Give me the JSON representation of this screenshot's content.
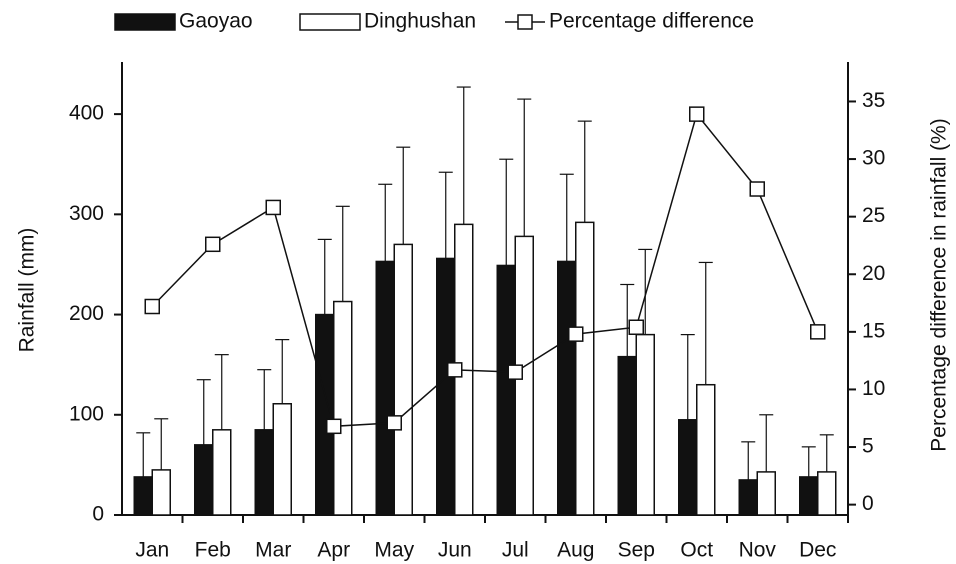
{
  "chart_data": {
    "type": "bar",
    "categories": [
      "Jan",
      "Feb",
      "Mar",
      "Apr",
      "May",
      "Jun",
      "Jul",
      "Aug",
      "Sep",
      "Oct",
      "Nov",
      "Dec"
    ],
    "y_label": "Rainfall (mm)",
    "y2_label": "Percentage difference in rainfall  (%)",
    "ylim": [
      0,
      454
    ],
    "yticks": [
      0,
      100,
      200,
      300,
      400
    ],
    "y2lim": [
      -0.9,
      38.6
    ],
    "y2ticks": [
      0,
      5,
      10,
      15,
      20,
      25,
      30,
      35
    ],
    "series": [
      {
        "name": "Gaoyao",
        "type": "bar",
        "color": "#111111",
        "values": [
          38,
          70,
          85,
          200,
          253,
          256,
          249,
          253,
          158,
          95,
          35,
          38
        ],
        "errors": [
          44,
          65,
          60,
          75,
          77,
          86,
          106,
          87,
          72,
          85,
          38,
          30
        ]
      },
      {
        "name": "Dinghushan",
        "type": "bar",
        "color": "#ffffff",
        "values": [
          45,
          85,
          111,
          213,
          270,
          290,
          278,
          292,
          180,
          130,
          43,
          43
        ],
        "errors": [
          51,
          75,
          64,
          95,
          97,
          137,
          137,
          101,
          85,
          122,
          57,
          37
        ]
      },
      {
        "name": "Percentage difference",
        "type": "line",
        "axis": "y2",
        "color": "#111111",
        "values": [
          17.2,
          22.6,
          25.8,
          6.8,
          7.1,
          11.7,
          11.5,
          14.8,
          15.4,
          33.9,
          27.4,
          15.0
        ]
      }
    ]
  }
}
